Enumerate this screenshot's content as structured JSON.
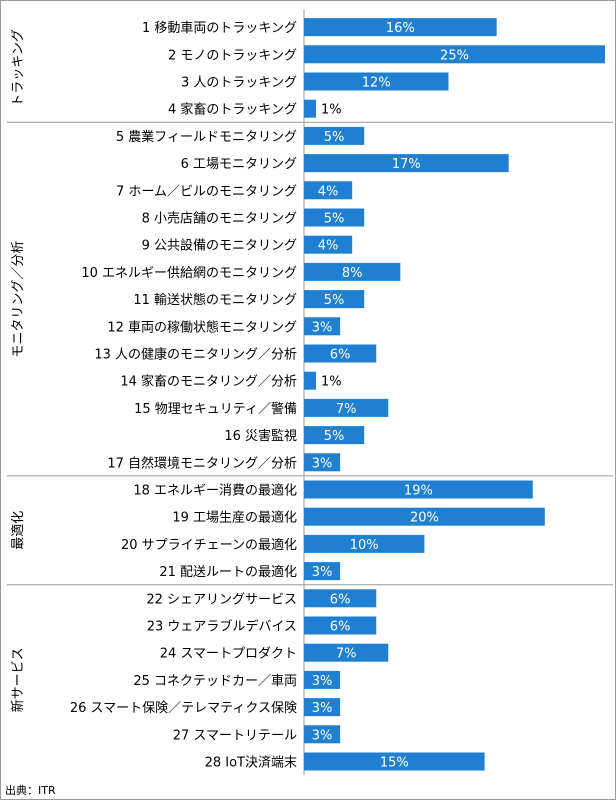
{
  "chart_data": {
    "type": "bar",
    "orientation": "horizontal",
    "unit": "%",
    "xlim": [
      0,
      25
    ],
    "grid": false,
    "legend": "none",
    "bar_color": "#1f7fd0",
    "source": "出典：ITR",
    "groups": [
      {
        "name": "トラッキング",
        "start": 0,
        "end": 3
      },
      {
        "name": "モニタリング／分析",
        "start": 4,
        "end": 16
      },
      {
        "name": "最適化",
        "start": 17,
        "end": 20
      },
      {
        "name": "新サービス",
        "start": 21,
        "end": 27
      }
    ],
    "categories": [
      "1 移動車両のトラッキング",
      "2 モノのトラッキング",
      "3 人のトラッキング",
      "4 家畜のトラッキング",
      "5 農業フィールドモニタリング",
      "6 工場モニタリング",
      "7 ホーム／ビルのモニタリング",
      "8 小売店舗のモニタリング",
      "9 公共設備のモニタリング",
      "10 エネルギー供給網のモニタリング",
      "11 輸送状態のモニタリング",
      "12 車両の稼働状態モニタリング",
      "13 人の健康のモニタリング／分析",
      "14 家畜のモニタリング／分析",
      "15 物理セキュリティ／警備",
      "16 災害監視",
      "17 自然環境モニタリング／分析",
      "18 エネルギー消費の最適化",
      "19 工場生産の最適化",
      "20 サプライチェーンの最適化",
      "21 配送ルートの最適化",
      "22 シェアリングサービス",
      "23 ウェアラブルデバイス",
      "24 スマートプロダクト",
      "25 コネクテッドカー／車両",
      "26 スマート保険／テレマティクス保険",
      "27 スマートリテール",
      "28 IoT決済端末"
    ],
    "values": [
      16,
      25,
      12,
      1,
      5,
      17,
      4,
      5,
      4,
      8,
      5,
      3,
      6,
      1,
      7,
      5,
      3,
      19,
      20,
      10,
      3,
      6,
      6,
      7,
      3,
      3,
      3,
      15
    ],
    "value_labels": [
      "16%",
      "25%",
      "12%",
      "1%",
      "5%",
      "17%",
      "4%",
      "5%",
      "4%",
      "8%",
      "5%",
      "3%",
      "6%",
      "1%",
      "7%",
      "5%",
      "3%",
      "19%",
      "20%",
      "10%",
      "3%",
      "6%",
      "6%",
      "7%",
      "3%",
      "3%",
      "3%",
      "15%"
    ]
  }
}
